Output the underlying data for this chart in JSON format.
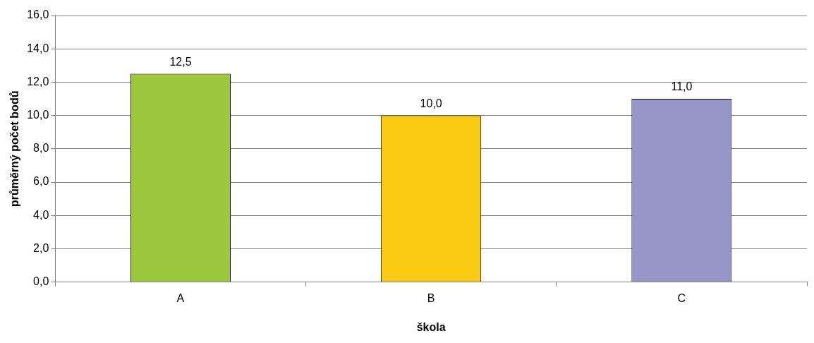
{
  "chart_data": {
    "type": "bar",
    "xlabel": "škola",
    "ylabel": "průměrný počet bodů",
    "categories": [
      "A",
      "B",
      "C"
    ],
    "values": [
      12.5,
      10,
      11
    ],
    "colors": [
      "#9bc83c",
      "#f9cb12",
      "#9696c8"
    ],
    "value_labels": [
      "12,5",
      "10,0",
      "11,0"
    ],
    "ylim": [
      0,
      16
    ],
    "yticks": [
      {
        "value": 0,
        "label": "0,0"
      },
      {
        "value": 2,
        "label": "2,0"
      },
      {
        "value": 4,
        "label": "4,0"
      },
      {
        "value": 6,
        "label": "6,0"
      },
      {
        "value": 8,
        "label": "8,0"
      },
      {
        "value": 10,
        "label": "10,0"
      },
      {
        "value": 12,
        "label": "12,0"
      },
      {
        "value": 14,
        "label": "14,0"
      },
      {
        "value": 16,
        "label": "16,0"
      }
    ],
    "grid": "y",
    "legend": false
  }
}
